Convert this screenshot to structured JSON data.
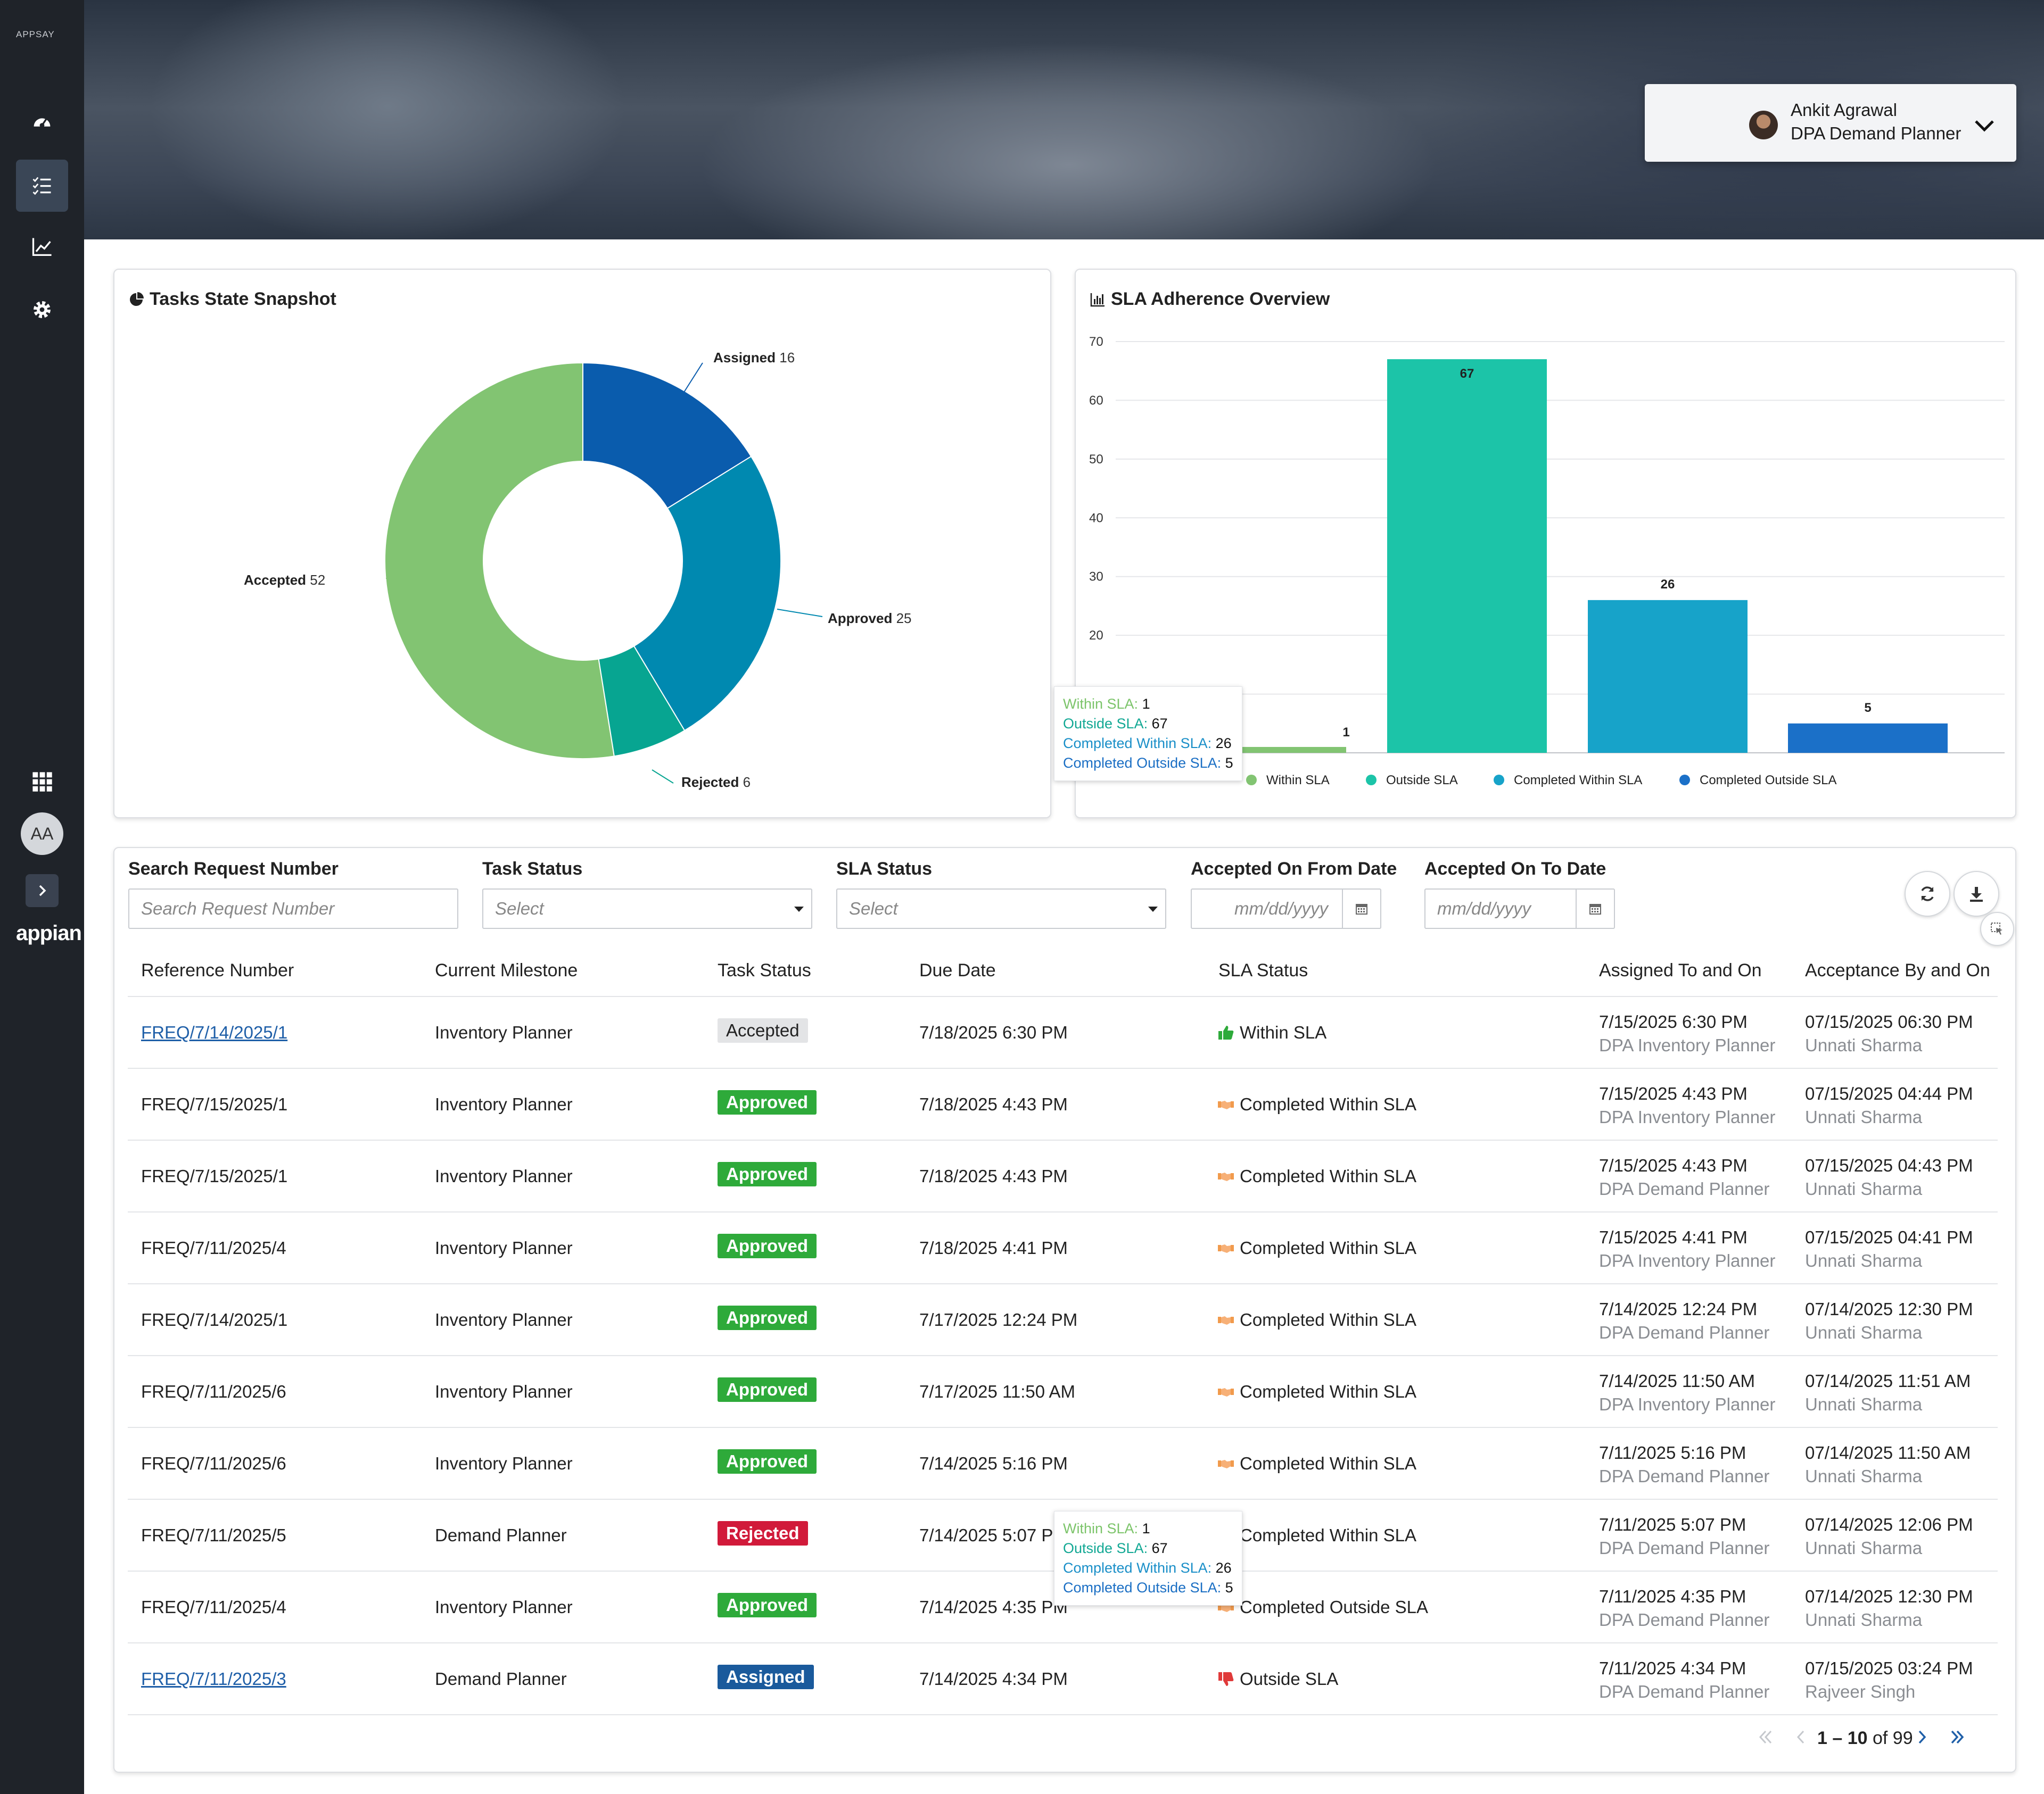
{
  "sidebar": {
    "brand": "APPSAY",
    "items": [
      {
        "name": "dashboard-icon"
      },
      {
        "name": "task-list-icon",
        "active": true
      },
      {
        "name": "chart-line-icon"
      },
      {
        "name": "gear-icon"
      }
    ],
    "avatar": "AA",
    "logo": "appian"
  },
  "user": {
    "name": "Ankit Agrawal",
    "role": "DPA Demand Planner"
  },
  "donut": {
    "title": "Tasks State Snapshot",
    "chart_data": {
      "type": "pie",
      "categories": [
        "Assigned",
        "Approved",
        "Rejected",
        "Accepted"
      ],
      "values": [
        16,
        25,
        6,
        52
      ],
      "colors": [
        "#0a5cad",
        "#0089b0",
        "#07a591",
        "#82c472"
      ]
    }
  },
  "sla": {
    "title": "SLA Adherence Overview",
    "chart_data": {
      "type": "bar",
      "categories": [
        "Within SLA",
        "Outside SLA",
        "Completed Within SLA",
        "Completed Outside SLA"
      ],
      "values": [
        1,
        67,
        26,
        5
      ],
      "colors": [
        "#82c472",
        "#1cc4a8",
        "#17a3c9",
        "#1b70c8"
      ],
      "yticks": [
        10,
        20,
        30,
        40,
        50,
        60,
        70
      ],
      "ylim": [
        0,
        70
      ],
      "legend_position": "bottom"
    }
  },
  "tooltip": {
    "rows": [
      {
        "label": "Within SLA",
        "value": "1",
        "color": "#7cc46a"
      },
      {
        "label": "Outside SLA",
        "value": "67",
        "color": "#12a894"
      },
      {
        "label": "Completed Within SLA",
        "value": "26",
        "color": "#1a8fc8"
      },
      {
        "label": "Completed Outside SLA",
        "value": "5",
        "color": "#1b6fc4"
      }
    ]
  },
  "filters": {
    "search": {
      "label": "Search Request Number",
      "placeholder": "Search Request Number"
    },
    "task_status": {
      "label": "Task Status",
      "value": "Select"
    },
    "sla_status": {
      "label": "SLA Status",
      "value": "Select"
    },
    "from_date": {
      "label": "Accepted On From Date",
      "placeholder": "mm/dd/yyyy"
    },
    "to_date": {
      "label": "Accepted On To Date",
      "placeholder": "mm/dd/yyyy"
    }
  },
  "table": {
    "headers": [
      "Reference Number",
      "Current Milestone",
      "Task Status",
      "Due Date",
      "SLA Status",
      "Assigned To and On",
      "Acceptance By and On"
    ],
    "rows": [
      {
        "ref": "FREQ/7/14/2025/1",
        "link": true,
        "milestone": "Inventory Planner",
        "status": "Accepted",
        "due": "7/18/2025 6:30 PM",
        "sla": "Within SLA",
        "sla_icon": "thumbs-up-icon",
        "assigned_on": "7/15/2025 6:30 PM",
        "assigned_to": "DPA Inventory Planner",
        "accepted_on": "07/15/2025 06:30 PM",
        "accepted_by": "Unnati Sharma"
      },
      {
        "ref": "FREQ/7/15/2025/1",
        "link": false,
        "milestone": "Inventory Planner",
        "status": "Approved",
        "due": "7/18/2025 4:43 PM",
        "sla": "Completed Within SLA",
        "sla_icon": "handshake-icon",
        "assigned_on": "7/15/2025 4:43 PM",
        "assigned_to": "DPA Inventory Planner",
        "accepted_on": "07/15/2025 04:44 PM",
        "accepted_by": "Unnati Sharma"
      },
      {
        "ref": "FREQ/7/15/2025/1",
        "link": false,
        "milestone": "Inventory Planner",
        "status": "Approved",
        "due": "7/18/2025 4:43 PM",
        "sla": "Completed Within SLA",
        "sla_icon": "handshake-icon",
        "assigned_on": "7/15/2025 4:43 PM",
        "assigned_to": "DPA Demand Planner",
        "accepted_on": "07/15/2025 04:43 PM",
        "accepted_by": "Unnati Sharma"
      },
      {
        "ref": "FREQ/7/11/2025/4",
        "link": false,
        "milestone": "Inventory Planner",
        "status": "Approved",
        "due": "7/18/2025 4:41 PM",
        "sla": "Completed Within SLA",
        "sla_icon": "handshake-icon",
        "assigned_on": "7/15/2025 4:41 PM",
        "assigned_to": "DPA Inventory Planner",
        "accepted_on": "07/15/2025 04:41 PM",
        "accepted_by": "Unnati Sharma"
      },
      {
        "ref": "FREQ/7/14/2025/1",
        "link": false,
        "milestone": "Inventory Planner",
        "status": "Approved",
        "due": "7/17/2025 12:24 PM",
        "sla": "Completed Within SLA",
        "sla_icon": "handshake-icon",
        "assigned_on": "7/14/2025 12:24 PM",
        "assigned_to": "DPA Demand Planner",
        "accepted_on": "07/14/2025 12:30 PM",
        "accepted_by": "Unnati Sharma"
      },
      {
        "ref": "FREQ/7/11/2025/6",
        "link": false,
        "milestone": "Inventory Planner",
        "status": "Approved",
        "due": "7/17/2025 11:50 AM",
        "sla": "Completed Within SLA",
        "sla_icon": "handshake-icon",
        "assigned_on": "7/14/2025 11:50 AM",
        "assigned_to": "DPA Inventory Planner",
        "accepted_on": "07/14/2025 11:51 AM",
        "accepted_by": "Unnati Sharma"
      },
      {
        "ref": "FREQ/7/11/2025/6",
        "link": false,
        "milestone": "Inventory Planner",
        "status": "Approved",
        "due": "7/14/2025 5:16 PM",
        "sla": "Completed Within SLA",
        "sla_icon": "handshake-icon",
        "assigned_on": "7/11/2025 5:16 PM",
        "assigned_to": "DPA Demand Planner",
        "accepted_on": "07/14/2025 11:50 AM",
        "accepted_by": "Unnati Sharma"
      },
      {
        "ref": "FREQ/7/11/2025/5",
        "link": false,
        "milestone": "Demand Planner",
        "status": "Rejected",
        "due": "7/14/2025 5:07 PM",
        "sla": "Completed Within SLA",
        "sla_icon": "handshake-icon",
        "assigned_on": "7/11/2025 5:07 PM",
        "assigned_to": "DPA Demand Planner",
        "accepted_on": "07/14/2025 12:06 PM",
        "accepted_by": "Unnati Sharma"
      },
      {
        "ref": "FREQ/7/11/2025/4",
        "link": false,
        "milestone": "Inventory Planner",
        "status": "Approved",
        "due": "7/14/2025 4:35 PM",
        "sla": "Completed Outside SLA",
        "sla_icon": "handshake-icon",
        "assigned_on": "7/11/2025 4:35 PM",
        "assigned_to": "DPA Demand Planner",
        "accepted_on": "07/14/2025 12:30 PM",
        "accepted_by": "Unnati Sharma"
      },
      {
        "ref": "FREQ/7/11/2025/3",
        "link": true,
        "milestone": "Demand Planner",
        "status": "Assigned",
        "due": "7/14/2025 4:34 PM",
        "sla": "Outside SLA",
        "sla_icon": "thumbs-down-icon",
        "assigned_on": "7/11/2025 4:34 PM",
        "assigned_to": "DPA Demand Planner",
        "accepted_on": "07/15/2025 03:24 PM",
        "accepted_by": "Rajveer Singh"
      }
    ]
  },
  "status_colors": {
    "Accepted": "#e3e4e6",
    "Approved": "#2eaa3a",
    "Rejected": "#d11a3a",
    "Assigned": "#1a5a9c"
  },
  "pager": {
    "range": "1 – 10",
    "of_text": "of 99"
  }
}
